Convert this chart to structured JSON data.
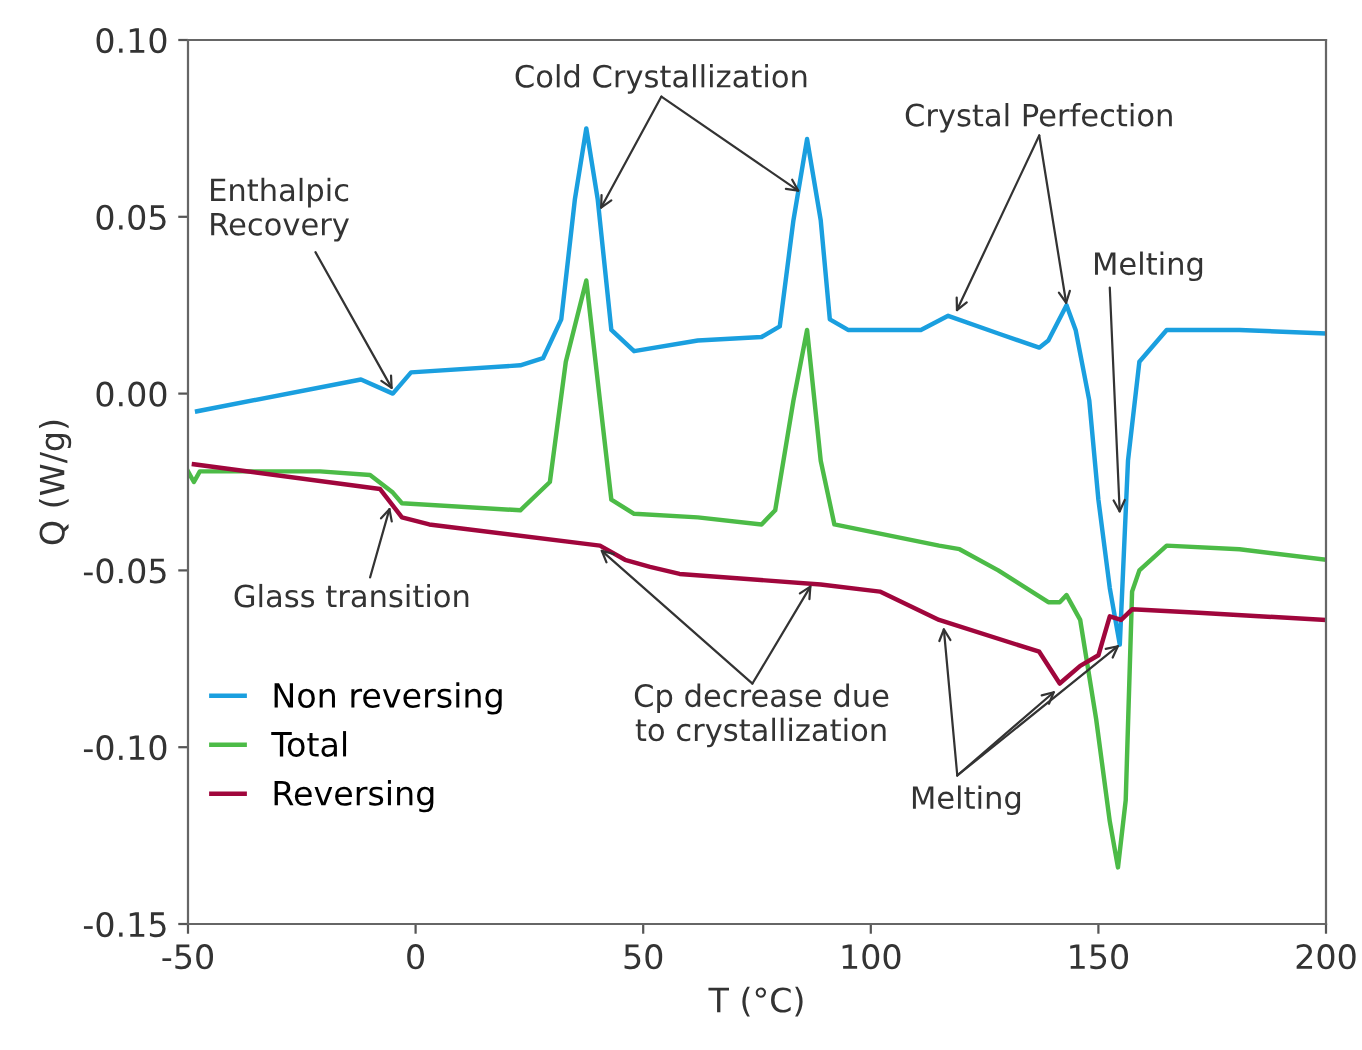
{
  "chart_data": {
    "type": "line",
    "xlabel": "T (°C)",
    "ylabel": "Q (W/g)",
    "xlim": [
      -50,
      200
    ],
    "xticks": [
      -50,
      0,
      50,
      100,
      150,
      200
    ],
    "ylim": [
      -0.15,
      0.1
    ],
    "yticks": [
      {
        "value": -0.15,
        "label": "-0.15"
      },
      {
        "value": -0.1,
        "label": "-0.10"
      },
      {
        "value": -0.05,
        "label": "-0.05"
      },
      {
        "value": 0,
        "label": "0.00"
      },
      {
        "value": 0.05,
        "label": "0.05"
      },
      {
        "value": 0.1,
        "label": "0.10"
      }
    ],
    "grid": false,
    "legend": "bottom left",
    "series": [
      {
        "name": "Non reversing",
        "color": "#1a9fdf",
        "x": [
          -48,
          -12,
          -5,
          -1,
          23,
          28,
          32,
          35,
          37.5,
          40,
          43,
          48,
          62,
          76,
          80,
          83,
          86,
          89,
          91,
          95,
          111,
          117,
          128,
          137,
          139,
          143,
          145,
          148,
          150,
          152.5,
          154.7,
          156.5,
          159,
          165,
          181,
          200
        ],
        "values": [
          -0.005,
          0.004,
          0.0,
          0.006,
          0.008,
          0.01,
          0.021,
          0.055,
          0.075,
          0.055,
          0.018,
          0.012,
          0.015,
          0.016,
          0.019,
          0.049,
          0.072,
          0.049,
          0.021,
          0.018,
          0.018,
          0.022,
          0.017,
          0.013,
          0.015,
          0.025,
          0.018,
          -0.002,
          -0.03,
          -0.055,
          -0.071,
          -0.019,
          0.009,
          0.018,
          0.018,
          0.017
        ]
      },
      {
        "name": "Total",
        "color": "#4cbb47",
        "x": [
          -50,
          -48.7,
          -47.4,
          -21,
          -10,
          -5,
          -3,
          23,
          29.5,
          33,
          37.5,
          40.5,
          43,
          48,
          62,
          76,
          79,
          83,
          86,
          89,
          92,
          115,
          119.5,
          128,
          139,
          141.5,
          143,
          146,
          149.5,
          152.5,
          154.3,
          156,
          157.4,
          159,
          165,
          181,
          200
        ],
        "values": [
          -0.022,
          -0.025,
          -0.022,
          -0.022,
          -0.023,
          -0.028,
          -0.031,
          -0.033,
          -0.025,
          0.009,
          0.032,
          -0.002,
          -0.03,
          -0.034,
          -0.035,
          -0.037,
          -0.033,
          -0.002,
          0.018,
          -0.019,
          -0.037,
          -0.043,
          -0.044,
          -0.05,
          -0.059,
          -0.059,
          -0.057,
          -0.064,
          -0.092,
          -0.121,
          -0.134,
          -0.115,
          -0.056,
          -0.05,
          -0.043,
          -0.044,
          -0.047
        ]
      },
      {
        "name": "Reversing",
        "color": "#a0063c",
        "x": [
          -48.7,
          -7.8,
          -3,
          3,
          40.5,
          46,
          51.5,
          58,
          89,
          102,
          115,
          137,
          141.5,
          146,
          150,
          152.5,
          155,
          157.4,
          172,
          200
        ],
        "values": [
          -0.02,
          -0.027,
          -0.035,
          -0.037,
          -0.043,
          -0.047,
          -0.049,
          -0.051,
          -0.054,
          -0.056,
          -0.064,
          -0.073,
          -0.082,
          -0.077,
          -0.074,
          -0.063,
          -0.064,
          -0.061,
          -0.062,
          -0.064
        ]
      }
    ],
    "annotations": [
      {
        "text": "Enthalpic\nRecovery",
        "x": -5,
        "y": 0.001
      },
      {
        "text": "Cold Crystallization",
        "x": 40.5,
        "y": 0.052
      },
      {
        "text": "Crystal Perfection",
        "x": 118.7,
        "y": 0.023
      },
      {
        "text": "Melting",
        "x": 154.7,
        "y": -0.034
      },
      {
        "text": "Glass transition",
        "x": -5.6,
        "y": -0.032
      },
      {
        "text": "Cp decrease due\nto crystallization",
        "x": 40.5,
        "y": -0.044
      },
      {
        "text": "Melting",
        "x": 140.6,
        "y": -0.084
      }
    ]
  }
}
